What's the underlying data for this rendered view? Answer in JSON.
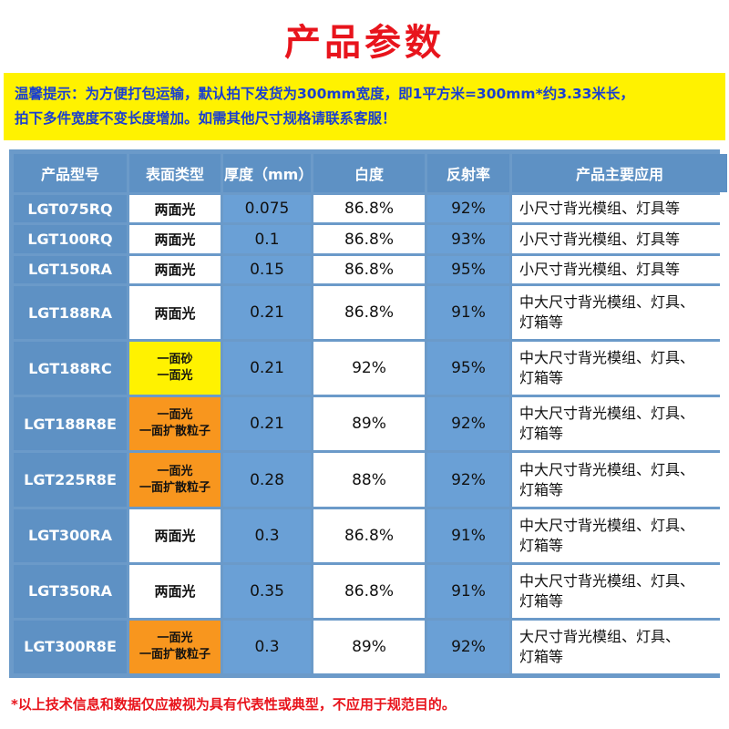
{
  "title": "产品参数",
  "notice": {
    "line1": "温馨提示：为方便打包运输，默认拍下发货为300mm宽度，即1平方米=300mm*约3.33米长，",
    "line2": "拍下多件宽度不变长度增加。如需其他尺寸规格请联系客服！"
  },
  "table": {
    "headers": [
      "产品型号",
      "表面类型",
      "厚度（mm）",
      "白度",
      "反射率",
      "产品主要应用"
    ],
    "rows": [
      {
        "model": "LGT075RQ",
        "surface": [
          "两面光"
        ],
        "surface_color": "white",
        "thickness": "0.075",
        "whiteness": "86.8%",
        "reflectance": "92%",
        "application": [
          "小尺寸背光模组、灯具等"
        ]
      },
      {
        "model": "LGT100RQ",
        "surface": [
          "两面光"
        ],
        "surface_color": "white",
        "thickness": "0.1",
        "whiteness": "86.8%",
        "reflectance": "93%",
        "application": [
          "小尺寸背光模组、灯具等"
        ]
      },
      {
        "model": "LGT150RA",
        "surface": [
          "两面光"
        ],
        "surface_color": "white",
        "thickness": "0.15",
        "whiteness": "86.8%",
        "reflectance": "95%",
        "application": [
          "小尺寸背光模组、灯具等"
        ]
      },
      {
        "model": "LGT188RA",
        "surface": [
          "两面光"
        ],
        "surface_color": "white",
        "thickness": "0.21",
        "whiteness": "86.8%",
        "reflectance": "91%",
        "application": [
          "中大尺寸背光模组、灯具、",
          "灯箱等"
        ]
      },
      {
        "model": "LGT188RC",
        "surface": [
          "一面砂",
          "一面光"
        ],
        "surface_color": "yellow",
        "thickness": "0.21",
        "whiteness": "92%",
        "reflectance": "95%",
        "application": [
          "中大尺寸背光模组、灯具、",
          "灯箱等"
        ]
      },
      {
        "model": "LGT188R8E",
        "surface": [
          "一面光",
          "一面扩散粒子"
        ],
        "surface_color": "orange",
        "thickness": "0.21",
        "whiteness": "89%",
        "reflectance": "92%",
        "application": [
          "中大尺寸背光模组、灯具、",
          "灯箱等"
        ]
      },
      {
        "model": "LGT225R8E",
        "surface": [
          "一面光",
          "一面扩散粒子"
        ],
        "surface_color": "orange",
        "thickness": "0.28",
        "whiteness": "88%",
        "reflectance": "92%",
        "application": [
          "中大尺寸背光模组、灯具、",
          "灯箱等"
        ]
      },
      {
        "model": "LGT300RA",
        "surface": [
          "两面光"
        ],
        "surface_color": "white",
        "thickness": "0.3",
        "whiteness": "86.8%",
        "reflectance": "91%",
        "application": [
          "中大尺寸背光模组、灯具、",
          "灯箱等"
        ]
      },
      {
        "model": "LGT350RA",
        "surface": [
          "两面光"
        ],
        "surface_color": "white",
        "thickness": "0.35",
        "whiteness": "86.8%",
        "reflectance": "91%",
        "application": [
          "中大尺寸背光模组、灯具、",
          "灯箱等"
        ]
      },
      {
        "model": "LGT300R8E",
        "surface": [
          "一面光",
          "一面扩散粒子"
        ],
        "surface_color": "orange",
        "thickness": "0.3",
        "whiteness": "89%",
        "reflectance": "92%",
        "application": [
          "大尺寸背光模组、灯具、",
          "灯箱等"
        ]
      }
    ]
  },
  "footnote": "*以上技术信息和数据仅应被视为具有代表性或典型，不应用于规范目的。",
  "colors": {
    "title": "#e8141c",
    "notice_bg": "#fff200",
    "notice_text": "#1a3fd0",
    "header_bg": "#5e91c4",
    "blue_cell": "#6aa0d6",
    "yellow_cell": "#fff200",
    "orange_cell": "#f8961e"
  }
}
